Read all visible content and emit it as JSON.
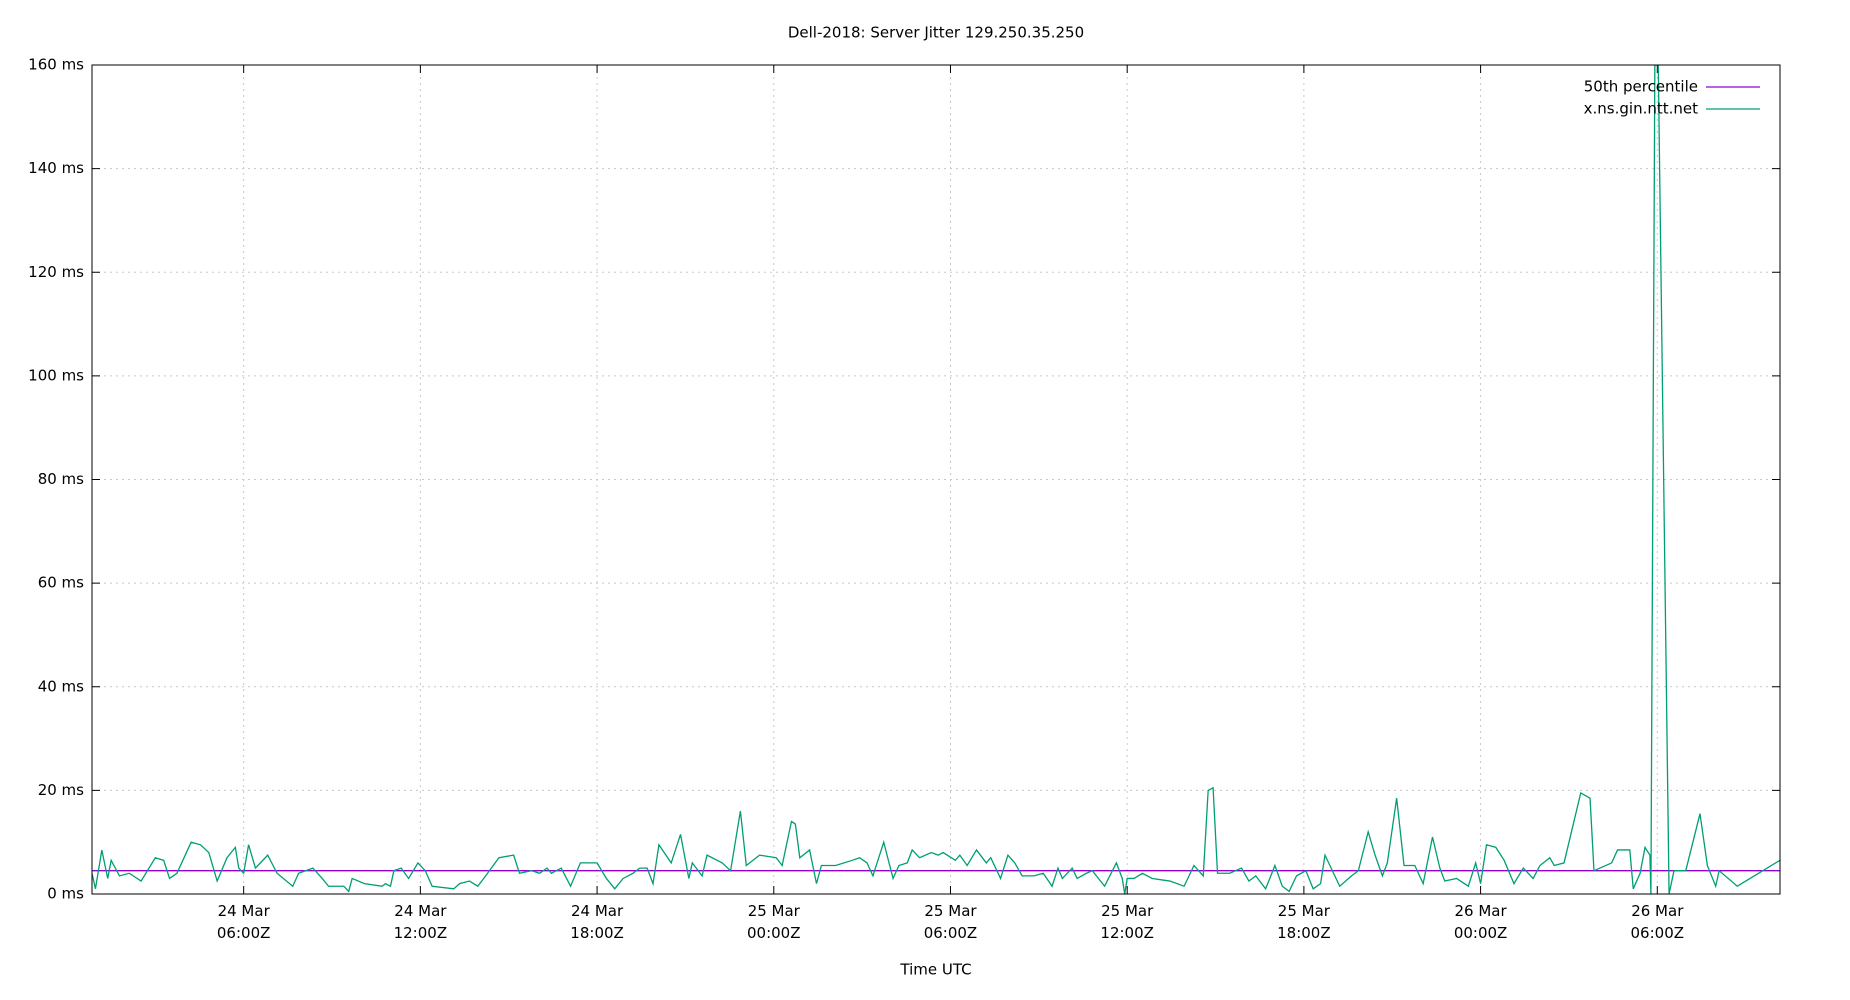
{
  "chart_data": {
    "type": "line",
    "title": "Dell-2018: Server Jitter 129.250.35.250",
    "x_label": "Time UTC",
    "xlim": [
      "24 Mar 00:51Z",
      "26 Mar 10:10Z"
    ],
    "xticks": [
      {
        "value": "24 Mar 06:00Z",
        "label": "24 Mar\n06:00Z"
      },
      {
        "value": "24 Mar 12:00Z",
        "label": "24 Mar\n12:00Z"
      },
      {
        "value": "24 Mar 18:00Z",
        "label": "24 Mar\n18:00Z"
      },
      {
        "value": "25 Mar 00:00Z",
        "label": "25 Mar\n00:00Z"
      },
      {
        "value": "25 Mar 06:00Z",
        "label": "25 Mar\n06:00Z"
      },
      {
        "value": "25 Mar 12:00Z",
        "label": "25 Mar\n12:00Z"
      },
      {
        "value": "25 Mar 18:00Z",
        "label": "25 Mar\n18:00Z"
      },
      {
        "value": "26 Mar 00:00Z",
        "label": "26 Mar\n00:00Z"
      },
      {
        "value": "26 Mar 06:00Z",
        "label": "26 Mar\n06:00Z"
      }
    ],
    "ylim": [
      0,
      160
    ],
    "yticks": [
      {
        "value": 0,
        "label": "0 ms"
      },
      {
        "value": 20,
        "label": "20 ms"
      },
      {
        "value": 40,
        "label": "40 ms"
      },
      {
        "value": 60,
        "label": "60 ms"
      },
      {
        "value": 80,
        "label": "80 ms"
      },
      {
        "value": 100,
        "label": "100 ms"
      },
      {
        "value": 120,
        "label": "120 ms"
      },
      {
        "value": 140,
        "label": "140 ms"
      },
      {
        "value": 160,
        "label": "160 ms"
      }
    ],
    "grid": true,
    "legend": "top-right",
    "series": [
      {
        "name": "50th percentile",
        "color": "#9400d3",
        "x": [
          "24 Mar 00:51Z",
          "26 Mar 10:10Z"
        ],
        "values": [
          4.5,
          4.5
        ]
      },
      {
        "name": "x.ns.gin.ntt.net",
        "color": "#009e73",
        "x": [
          "24 Mar 00:51Z",
          "24 Mar 00:58Z",
          "24 Mar 01:11Z",
          "24 Mar 01:23Z",
          "24 Mar 01:30Z",
          "24 Mar 01:47Z",
          "24 Mar 02:07Z",
          "24 Mar 02:31Z",
          "24 Mar 03:00Z",
          "24 Mar 03:17Z",
          "24 Mar 03:29Z",
          "24 Mar 03:44Z",
          "24 Mar 04:13Z",
          "24 Mar 04:32Z",
          "24 Mar 04:49Z",
          "24 Mar 05:06Z",
          "24 Mar 05:26Z",
          "24 Mar 05:43Z",
          "24 Mar 05:50Z",
          "24 Mar 06:00Z",
          "24 Mar 06:10Z",
          "24 Mar 06:24Z",
          "24 Mar 06:49Z",
          "24 Mar 07:08Z",
          "24 Mar 07:40Z",
          "24 Mar 07:52Z",
          "24 Mar 08:21Z",
          "24 Mar 08:40Z",
          "24 Mar 08:53Z",
          "24 Mar 09:24Z",
          "24 Mar 09:34Z",
          "24 Mar 09:41Z",
          "24 Mar 10:06Z",
          "24 Mar 10:42Z",
          "24 Mar 10:49Z",
          "24 Mar 10:59Z",
          "24 Mar 11:06Z",
          "24 Mar 11:21Z",
          "24 Mar 11:36Z",
          "24 Mar 11:55Z",
          "24 Mar 12:10Z",
          "24 Mar 12:24Z",
          "24 Mar 13:08Z",
          "24 Mar 13:20Z",
          "24 Mar 13:40Z",
          "24 Mar 13:57Z",
          "24 Mar 14:09Z",
          "24 Mar 14:40Z",
          "24 Mar 15:10Z",
          "24 Mar 15:22Z",
          "24 Mar 15:46Z",
          "24 Mar 16:03Z",
          "24 Mar 16:18Z",
          "24 Mar 16:27Z",
          "24 Mar 16:47Z",
          "24 Mar 17:06Z",
          "24 Mar 17:26Z",
          "24 Mar 18:00Z",
          "24 Mar 18:19Z",
          "24 Mar 18:36Z",
          "24 Mar 18:53Z",
          "24 Mar 19:13Z",
          "24 Mar 19:27Z",
          "24 Mar 19:42Z",
          "24 Mar 19:54Z",
          "24 Mar 20:06Z",
          "24 Mar 20:31Z",
          "24 Mar 20:50Z",
          "24 Mar 21:07Z",
          "24 Mar 21:14Z",
          "24 Mar 21:34Z",
          "24 Mar 21:44Z",
          "24 Mar 22:15Z",
          "24 Mar 22:32Z",
          "24 Mar 22:52Z",
          "24 Mar 23:04Z",
          "24 Mar 23:31Z",
          "25 Mar 00:05Z",
          "25 Mar 00:17Z",
          "25 Mar 00:36Z",
          "25 Mar 00:44Z",
          "25 Mar 00:53Z",
          "25 Mar 01:13Z",
          "25 Mar 01:27Z",
          "25 Mar 01:37Z",
          "25 Mar 02:06Z",
          "25 Mar 02:40Z",
          "25 Mar 02:55Z",
          "25 Mar 03:10Z",
          "25 Mar 03:22Z",
          "25 Mar 03:44Z",
          "25 Mar 04:03Z",
          "25 Mar 04:15Z",
          "25 Mar 04:32Z",
          "25 Mar 04:42Z",
          "25 Mar 04:57Z",
          "25 Mar 05:21Z",
          "25 Mar 05:35Z",
          "25 Mar 05:45Z",
          "25 Mar 06:10Z",
          "25 Mar 06:19Z",
          "25 Mar 06:34Z",
          "25 Mar 06:53Z",
          "25 Mar 07:13Z",
          "25 Mar 07:22Z",
          "25 Mar 07:42Z",
          "25 Mar 07:57Z",
          "25 Mar 08:11Z",
          "25 Mar 08:26Z",
          "25 Mar 08:50Z",
          "25 Mar 09:09Z",
          "25 Mar 09:27Z",
          "25 Mar 09:39Z",
          "25 Mar 09:48Z",
          "25 Mar 10:08Z",
          "25 Mar 10:18Z",
          "25 Mar 10:37Z",
          "25 Mar 10:49Z",
          "25 Mar 11:14Z",
          "25 Mar 11:38Z",
          "25 Mar 11:50Z",
          "25 Mar 11:55Z",
          "25 Mar 12:00Z",
          "25 Mar 12:14Z",
          "25 Mar 12:31Z",
          "25 Mar 12:51Z",
          "25 Mar 13:27Z",
          "25 Mar 13:56Z",
          "25 Mar 14:16Z",
          "25 Mar 14:35Z",
          "25 Mar 14:45Z",
          "25 Mar 14:55Z",
          "25 Mar 15:04Z",
          "25 Mar 15:29Z",
          "25 Mar 15:53Z",
          "25 Mar 16:08Z",
          "25 Mar 16:22Z",
          "25 Mar 16:42Z",
          "25 Mar 17:01Z",
          "25 Mar 17:16Z",
          "25 Mar 17:30Z",
          "25 Mar 17:45Z",
          "25 Mar 18:04Z",
          "25 Mar 18:19Z",
          "25 Mar 18:34Z",
          "25 Mar 18:43Z",
          "25 Mar 19:13Z",
          "25 Mar 19:37Z",
          "25 Mar 19:51Z",
          "25 Mar 20:11Z",
          "25 Mar 20:25Z",
          "25 Mar 20:40Z",
          "25 Mar 20:50Z",
          "25 Mar 21:09Z",
          "25 Mar 21:24Z",
          "25 Mar 21:46Z",
          "25 Mar 22:03Z",
          "25 Mar 22:22Z",
          "25 Mar 22:37Z",
          "25 Mar 22:47Z",
          "25 Mar 23:11Z",
          "25 Mar 23:35Z",
          "25 Mar 23:50Z",
          "26 Mar 00:00Z",
          "26 Mar 00:12Z",
          "26 Mar 00:31Z",
          "26 Mar 00:48Z",
          "26 Mar 01:08Z",
          "26 Mar 01:27Z",
          "26 Mar 01:47Z",
          "26 Mar 02:01Z",
          "26 Mar 02:21Z",
          "26 Mar 02:30Z",
          "26 Mar 02:50Z",
          "26 Mar 03:24Z",
          "26 Mar 03:43Z",
          "26 Mar 03:51Z",
          "26 Mar 04:27Z",
          "26 Mar 04:39Z",
          "26 Mar 05:04Z",
          "26 Mar 05:11Z",
          "26 Mar 05:25Z",
          "26 Mar 05:35Z",
          "26 Mar 05:45Z",
          "26 Mar 05:47Z",
          "26 Mar 05:55Z",
          "26 Mar 06:02Z",
          "26 Mar 06:24Z",
          "26 Mar 06:34Z",
          "26 Mar 06:58Z",
          "26 Mar 07:27Z",
          "26 Mar 07:42Z",
          "26 Mar 07:59Z",
          "26 Mar 08:06Z",
          "26 Mar 08:43Z",
          "26 Mar 10:10Z"
        ],
        "values": [
          4,
          1,
          8.5,
          3,
          6.5,
          3.5,
          4,
          2.5,
          7,
          6.5,
          3,
          4,
          10,
          9.5,
          8,
          2.5,
          7,
          9,
          5,
          4,
          9.5,
          5,
          7.5,
          4,
          1.5,
          4,
          5,
          3,
          1.5,
          1.5,
          0.5,
          3,
          2,
          1.5,
          2,
          1.5,
          4.5,
          5,
          3,
          6,
          4.5,
          1.5,
          1,
          2,
          2.5,
          1.5,
          3,
          7,
          7.5,
          4,
          4.5,
          4,
          5,
          4,
          5,
          1.5,
          6,
          6,
          3,
          1,
          3,
          4,
          5,
          5,
          2,
          9.5,
          6,
          11.5,
          3,
          6,
          3.5,
          7.5,
          6,
          4.5,
          16,
          5.5,
          7.5,
          7,
          5.5,
          14,
          13.5,
          7,
          8.5,
          2,
          5.5,
          5.5,
          6.5,
          7,
          6,
          3.5,
          10,
          3,
          5.5,
          6,
          8.5,
          7,
          8,
          7.5,
          8,
          6.5,
          7.5,
          5.5,
          8.5,
          6,
          7,
          3,
          7.5,
          6,
          3.5,
          3.5,
          4,
          1.5,
          5,
          3,
          5,
          3,
          4,
          4.5,
          1.5,
          6,
          3,
          0,
          3,
          3,
          4,
          3,
          2.5,
          1.5,
          5.5,
          3.5,
          20,
          20.5,
          4,
          4,
          5,
          2.5,
          3.5,
          1,
          5.5,
          1.5,
          0.5,
          3.5,
          4.5,
          1,
          2,
          7.5,
          1.5,
          3.5,
          4.5,
          12,
          7.5,
          3.5,
          6,
          18.5,
          5.5,
          5.5,
          2,
          11,
          5,
          2.5,
          3,
          1.5,
          6,
          2,
          9.5,
          9,
          6.5,
          2,
          5,
          3,
          5.5,
          7,
          5.5,
          6,
          19.5,
          18.5,
          4.5,
          6,
          8.5,
          8.5,
          1,
          4,
          9,
          7.5,
          0,
          160,
          160,
          0,
          4.5,
          4.5,
          15.5,
          5.5,
          1.5,
          4.5,
          1.5,
          6.5
        ]
      }
    ]
  }
}
